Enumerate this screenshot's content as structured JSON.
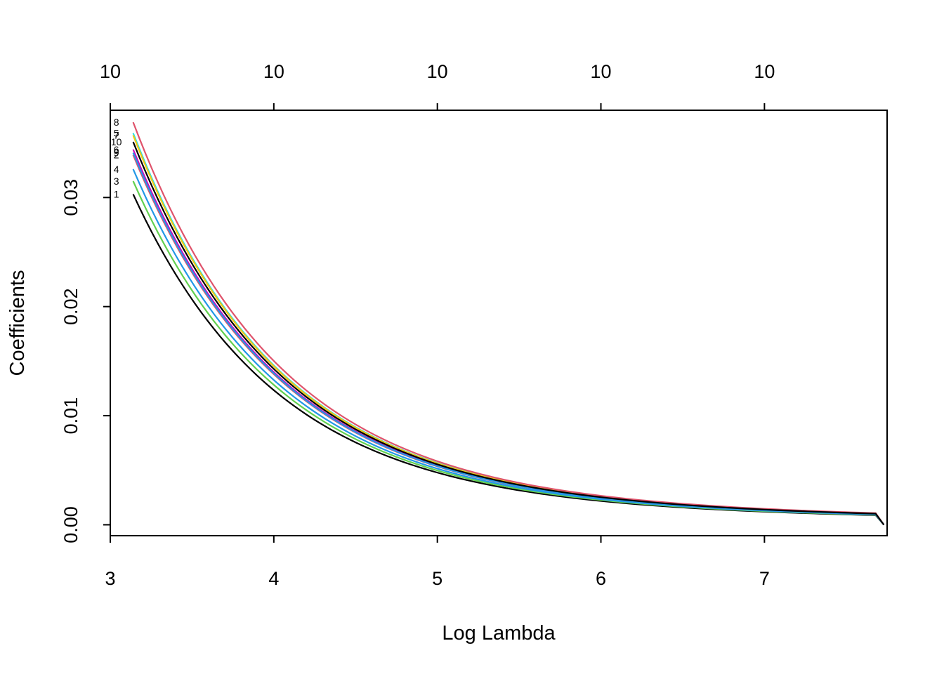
{
  "chart_data": {
    "type": "line",
    "title": "",
    "xlabel": "Log Lambda",
    "ylabel": "Coefficients",
    "xlim": [
      3.0,
      7.75
    ],
    "ylim": [
      -0.001,
      0.038
    ],
    "x_ticks": [
      "3",
      "4",
      "5",
      "6",
      "7"
    ],
    "y_ticks": [
      "0.00",
      "0.01",
      "0.02",
      "0.03"
    ],
    "top_ticks": [
      "10",
      "10",
      "10",
      "10",
      "10"
    ],
    "grid": false,
    "x_start": 3.14,
    "x_knee": 7.68,
    "x_end": 7.73,
    "series": [
      {
        "name": "1",
        "start_value": 0.0303,
        "color": "#000000"
      },
      {
        "name": "2",
        "start_value": 0.0339,
        "color": "#DF536B"
      },
      {
        "name": "3",
        "start_value": 0.0315,
        "color": "#61D04F"
      },
      {
        "name": "4",
        "start_value": 0.0326,
        "color": "#2297E6"
      },
      {
        "name": "5",
        "start_value": 0.0359,
        "color": "#28E2E5"
      },
      {
        "name": "6",
        "start_value": 0.0344,
        "color": "#CD0BBC"
      },
      {
        "name": "7",
        "start_value": 0.0357,
        "color": "#F5C710"
      },
      {
        "name": "8",
        "start_value": 0.0369,
        "color": "#DF536B"
      },
      {
        "name": "9",
        "start_value": 0.0341,
        "color": "#2297E6"
      },
      {
        "name": "10",
        "start_value": 0.0351,
        "color": "#000000"
      }
    ]
  }
}
